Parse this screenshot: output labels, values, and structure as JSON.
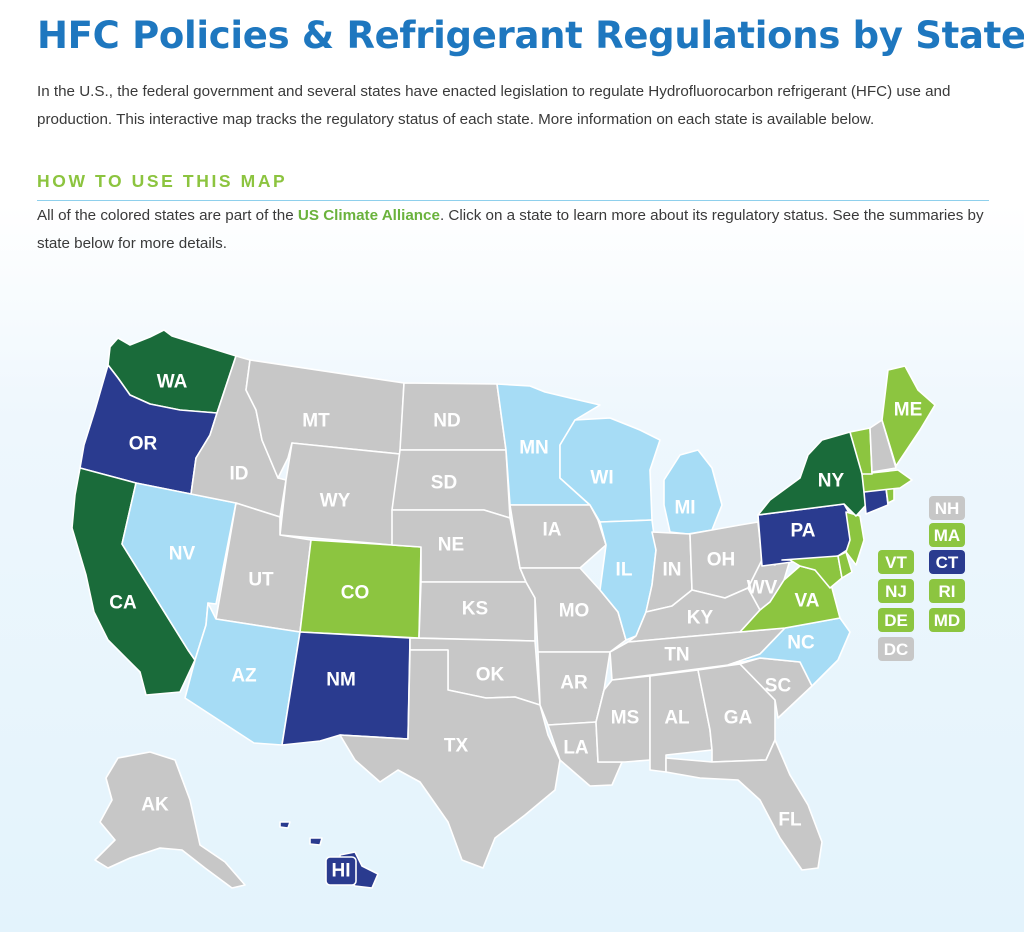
{
  "page": {
    "title": "HFC Policies & Refrigerant Regulations by State",
    "intro": "In the U.S., the federal government and several states have enacted legislation to regulate Hydrofluorocarbon refrigerant (HFC) use and production. This interactive map tracks the regulatory status of each state. More information on each state is available below."
  },
  "how_to": {
    "heading": "HOW TO USE THIS MAP",
    "text_before": "All of the colored states are part of the ",
    "link_label": "US Climate Alliance",
    "text_after": ". Click on a state to learn more about its regulatory status. See the summaries by state below for more details."
  },
  "colors": {
    "dark_green": "#1a6b3a",
    "navy": "#2a3b8f",
    "lime": "#8cc540",
    "light_blue": "#a6dcf5",
    "gray": "#c7c7c7",
    "title_blue": "#1e77bf"
  },
  "map": {
    "states": {
      "WA": {
        "label": "WA",
        "status": "dark_green"
      },
      "OR": {
        "label": "OR",
        "status": "navy"
      },
      "CA": {
        "label": "CA",
        "status": "dark_green"
      },
      "NV": {
        "label": "NV",
        "status": "light_blue"
      },
      "ID": {
        "label": "ID",
        "status": "gray"
      },
      "MT": {
        "label": "MT",
        "status": "gray"
      },
      "WY": {
        "label": "WY",
        "status": "gray"
      },
      "UT": {
        "label": "UT",
        "status": "gray"
      },
      "AZ": {
        "label": "AZ",
        "status": "light_blue"
      },
      "CO": {
        "label": "CO",
        "status": "lime"
      },
      "NM": {
        "label": "NM",
        "status": "navy"
      },
      "ND": {
        "label": "ND",
        "status": "gray"
      },
      "SD": {
        "label": "SD",
        "status": "gray"
      },
      "NE": {
        "label": "NE",
        "status": "gray"
      },
      "KS": {
        "label": "KS",
        "status": "gray"
      },
      "OK": {
        "label": "OK",
        "status": "gray"
      },
      "TX": {
        "label": "TX",
        "status": "gray"
      },
      "MN": {
        "label": "MN",
        "status": "light_blue"
      },
      "IA": {
        "label": "IA",
        "status": "gray"
      },
      "MO": {
        "label": "MO",
        "status": "gray"
      },
      "AR": {
        "label": "AR",
        "status": "gray"
      },
      "LA": {
        "label": "LA",
        "status": "gray"
      },
      "WI": {
        "label": "WI",
        "status": "light_blue"
      },
      "IL": {
        "label": "IL",
        "status": "light_blue"
      },
      "MI": {
        "label": "MI",
        "status": "light_blue"
      },
      "IN": {
        "label": "IN",
        "status": "gray"
      },
      "OH": {
        "label": "OH",
        "status": "gray"
      },
      "KY": {
        "label": "KY",
        "status": "gray"
      },
      "TN": {
        "label": "TN",
        "status": "gray"
      },
      "MS": {
        "label": "MS",
        "status": "gray"
      },
      "AL": {
        "label": "AL",
        "status": "gray"
      },
      "GA": {
        "label": "GA",
        "status": "gray"
      },
      "FL": {
        "label": "FL",
        "status": "gray"
      },
      "SC": {
        "label": "SC",
        "status": "gray"
      },
      "NC": {
        "label": "NC",
        "status": "light_blue"
      },
      "VA": {
        "label": "VA",
        "status": "lime"
      },
      "WV": {
        "label": "WV",
        "status": "gray"
      },
      "PA": {
        "label": "PA",
        "status": "navy"
      },
      "NY": {
        "label": "NY",
        "status": "dark_green"
      },
      "ME": {
        "label": "ME",
        "status": "lime"
      },
      "AK": {
        "label": "AK",
        "status": "gray"
      },
      "HI": {
        "label": "HI",
        "status": "navy"
      }
    },
    "small_states": [
      {
        "label": "NH",
        "status": "gray"
      },
      {
        "label": "MA",
        "status": "lime"
      },
      {
        "label": "VT",
        "status": "lime"
      },
      {
        "label": "CT",
        "status": "navy"
      },
      {
        "label": "NJ",
        "status": "lime"
      },
      {
        "label": "RI",
        "status": "lime"
      },
      {
        "label": "DE",
        "status": "lime"
      },
      {
        "label": "MD",
        "status": "lime"
      },
      {
        "label": "DC",
        "status": "gray"
      }
    ]
  }
}
